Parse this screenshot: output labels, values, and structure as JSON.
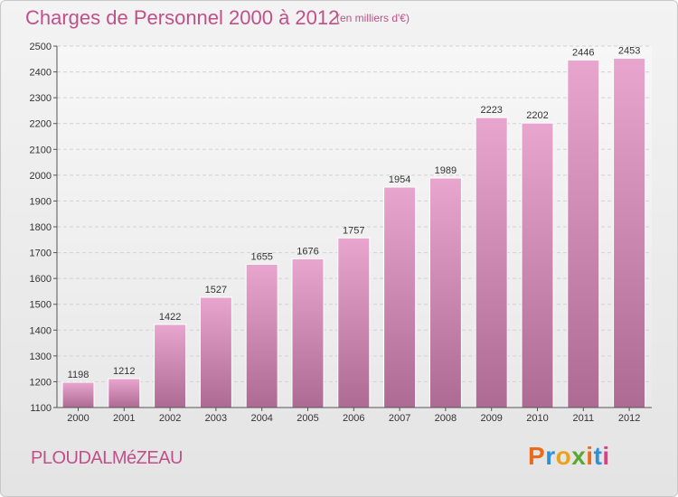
{
  "header": {
    "title": "Charges de Personnel 2000 à 2012",
    "subtitle": "(en milliers d'€)"
  },
  "footer": {
    "city": "PLOUDALMéZEAU",
    "brand_letters": [
      {
        "char": "P",
        "color": "#e86c1b"
      },
      {
        "char": "r",
        "color": "#2f8fd8"
      },
      {
        "char": "o",
        "color": "#e8a31b"
      },
      {
        "char": "x",
        "color": "#5aa832"
      },
      {
        "char": "i",
        "color": "#e86c1b"
      },
      {
        "char": "t",
        "color": "#2f8fd8"
      },
      {
        "char": "i",
        "color": "#d8408a"
      }
    ]
  },
  "colors": {
    "accent": "#c0508a",
    "bar_top": "#e8a6cf",
    "bar_bottom": "#ad6b94"
  },
  "chart_data": {
    "type": "bar",
    "title": "Charges de Personnel 2000 à 2012",
    "subtitle": "(en milliers d'€)",
    "categories": [
      "2000",
      "2001",
      "2002",
      "2003",
      "2004",
      "2005",
      "2006",
      "2007",
      "2008",
      "2009",
      "2010",
      "2011",
      "2012"
    ],
    "values": [
      1198,
      1212,
      1422,
      1527,
      1655,
      1676,
      1757,
      1954,
      1989,
      2223,
      2202,
      2446,
      2453
    ],
    "ylim": [
      1100,
      2500
    ],
    "yticks": [
      1100,
      1200,
      1300,
      1400,
      1500,
      1600,
      1700,
      1800,
      1900,
      2000,
      2100,
      2200,
      2300,
      2400,
      2500
    ],
    "grid": true,
    "data_labels": true
  }
}
